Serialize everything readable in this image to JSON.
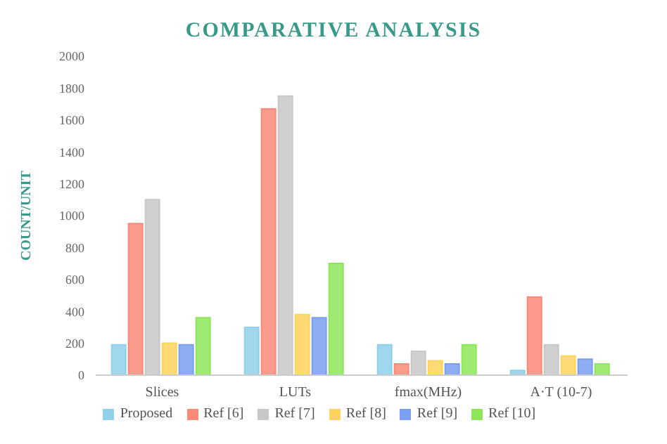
{
  "chart_data": {
    "type": "bar",
    "title": "COMPARATIVE ANALYSIS",
    "ylabel": "COUNT/UNIT",
    "categories": [
      "Slices",
      "LUTs",
      "fmax(MHz)",
      "A·T (10-7)"
    ],
    "series": [
      {
        "name": "Proposed",
        "color": "#8fd0ea",
        "values": [
          190,
          300,
          190,
          30
        ]
      },
      {
        "name": "Ref [6]",
        "color": "#f98a78",
        "values": [
          950,
          1670,
          70,
          490
        ]
      },
      {
        "name": "Ref [7]",
        "color": "#c8c8c8",
        "values": [
          1100,
          1750,
          150,
          190
        ]
      },
      {
        "name": "Ref [8]",
        "color": "#fdd35c",
        "values": [
          200,
          380,
          90,
          120
        ]
      },
      {
        "name": "Ref [9]",
        "color": "#7a9ef0",
        "values": [
          190,
          360,
          70,
          100
        ]
      },
      {
        "name": "Ref [10]",
        "color": "#8ee65a",
        "values": [
          360,
          700,
          190,
          70
        ]
      }
    ],
    "ylim": [
      0,
      2000
    ],
    "yticks": [
      0,
      200,
      400,
      600,
      800,
      1000,
      1200,
      1400,
      1600,
      1800,
      2000
    ],
    "grid": false,
    "legend": "bottom"
  }
}
